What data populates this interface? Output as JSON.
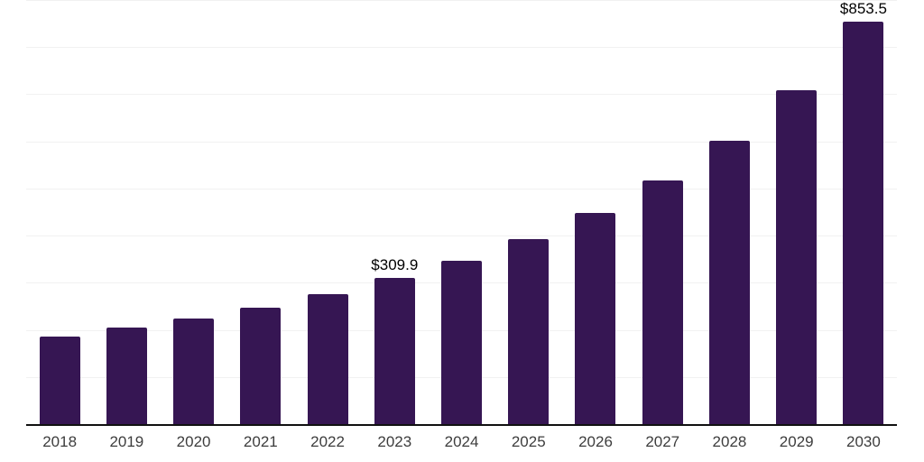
{
  "chart_data": {
    "type": "bar",
    "categories": [
      "2018",
      "2019",
      "2020",
      "2021",
      "2022",
      "2023",
      "2024",
      "2025",
      "2026",
      "2027",
      "2028",
      "2029",
      "2030"
    ],
    "values": [
      186,
      205,
      224,
      247,
      276,
      309.9,
      346,
      392,
      448,
      517,
      602,
      708,
      853.5
    ],
    "data_labels": [
      "",
      "",
      "",
      "",
      "",
      "$309.9",
      "",
      "",
      "",
      "",
      "",
      "",
      "$853.5"
    ],
    "title": "",
    "xlabel": "",
    "ylabel": "",
    "ylim": [
      0,
      900
    ],
    "gridline_step": 100,
    "grid": true,
    "legend": "none",
    "y_axis_tick_labels_visible": false
  },
  "colors": {
    "bar": "#361653",
    "gridline": "#f1f1f1",
    "axis_line": "#111111",
    "tick_label": "#3d3d3d",
    "data_label": "#000000",
    "background": "#ffffff"
  }
}
